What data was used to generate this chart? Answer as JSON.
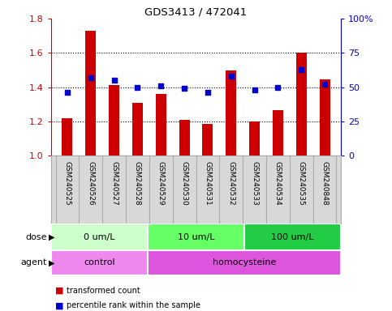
{
  "title": "GDS3413 / 472041",
  "samples": [
    "GSM240525",
    "GSM240526",
    "GSM240527",
    "GSM240528",
    "GSM240529",
    "GSM240530",
    "GSM240531",
    "GSM240532",
    "GSM240533",
    "GSM240534",
    "GSM240535",
    "GSM240848"
  ],
  "transformed_count": [
    1.22,
    1.73,
    1.41,
    1.31,
    1.36,
    1.21,
    1.185,
    1.495,
    1.2,
    1.265,
    1.6,
    1.445
  ],
  "percentile_rank": [
    46,
    57,
    55,
    50,
    51,
    49,
    46,
    58,
    48,
    50,
    63,
    52
  ],
  "ylim_left": [
    1.0,
    1.8
  ],
  "ylim_right": [
    0,
    100
  ],
  "yticks_left": [
    1.0,
    1.2,
    1.4,
    1.6,
    1.8
  ],
  "yticks_right": [
    0,
    25,
    50,
    75,
    100
  ],
  "ytick_labels_right": [
    "0",
    "25",
    "50",
    "75",
    "100%"
  ],
  "bar_color": "#cc0000",
  "dot_color": "#0000cc",
  "dose_groups": [
    {
      "label": "0 um/L",
      "start": 0,
      "end": 4,
      "color": "#ccffcc"
    },
    {
      "label": "10 um/L",
      "start": 4,
      "end": 8,
      "color": "#66ff66"
    },
    {
      "label": "100 um/L",
      "start": 8,
      "end": 12,
      "color": "#22cc44"
    }
  ],
  "agent_groups": [
    {
      "label": "control",
      "start": 0,
      "end": 4,
      "color": "#ee88ee"
    },
    {
      "label": "homocysteine",
      "start": 4,
      "end": 12,
      "color": "#dd55dd"
    }
  ],
  "dose_label": "dose",
  "agent_label": "agent",
  "legend_items": [
    {
      "label": "transformed count",
      "color": "#cc0000"
    },
    {
      "label": "percentile rank within the sample",
      "color": "#0000cc"
    }
  ],
  "tick_label_color_left": "#cc0000",
  "tick_label_color_right": "#0000cc",
  "bar_width": 0.45,
  "dot_size": 25,
  "label_bg_color": "#d8d8d8",
  "label_border_color": "#aaaaaa"
}
